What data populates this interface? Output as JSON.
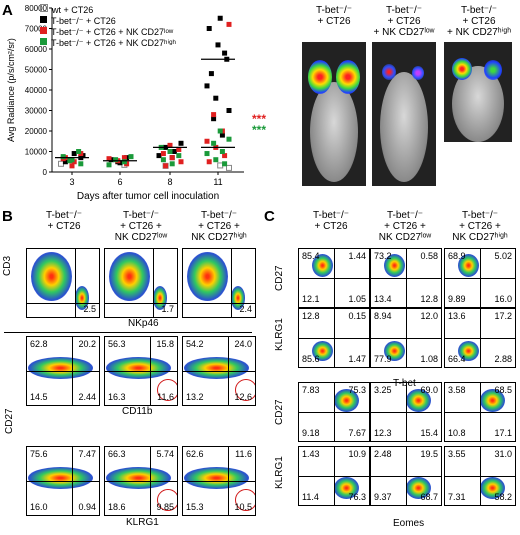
{
  "panelA": {
    "letter": "A",
    "legend": [
      "wt + CT26",
      "T-bet⁻/⁻ + CT26",
      "T-bet⁻/⁻ + CT26 + NK CD27ˡᵒʷ",
      "T-bet⁻/⁻ + CT26 + NK CD27ʰⁱᵍʰ"
    ],
    "colors": {
      "wt": "#888888",
      "tbet": "#000000",
      "low": "#e02020",
      "high": "#1a9a3a"
    },
    "sig_low": "***",
    "sig_high": "***",
    "images": [
      {
        "label1": "T-bet⁻/⁻",
        "label2": "+ CT26",
        "label3": ""
      },
      {
        "label1": "T-bet⁻/⁻",
        "label2": "+ CT26",
        "label3": "+ NK CD27ˡᵒʷ"
      },
      {
        "label1": "T-bet⁻/⁻",
        "label2": "+ CT26",
        "label3": "+ NK CD27ʰⁱᵍʰ"
      }
    ]
  },
  "chart_data": {
    "type": "scatter",
    "xlabel": "Days after tumor cell inoculation",
    "ylabel": "Avg Radiance (p/s/cm²/sr)",
    "categories": [
      "3",
      "6",
      "8",
      "11"
    ],
    "yticks": [
      "0",
      "10000",
      "20000",
      "30000",
      "40000",
      "50000",
      "60000",
      "70000",
      "80000"
    ],
    "ylim": [
      0,
      80000
    ],
    "means": [
      {
        "x": "3",
        "value": 7000
      },
      {
        "x": "6",
        "value": 5500
      },
      {
        "x": "8",
        "value": 12000
      },
      {
        "x": "11",
        "value": 55000
      },
      {
        "x": "11",
        "value": 12000
      }
    ],
    "series": [
      {
        "name": "wt + CT26",
        "points": [
          [
            3,
            4000
          ],
          [
            6,
            3500
          ],
          [
            8,
            3000
          ],
          [
            11,
            2000
          ],
          [
            11,
            3200
          ]
        ]
      },
      {
        "name": "T-bet⁻/⁻ + CT26",
        "points": [
          [
            3,
            6000
          ],
          [
            3,
            8000
          ],
          [
            3,
            9000
          ],
          [
            3,
            5000
          ],
          [
            3,
            7000
          ],
          [
            6,
            4500
          ],
          [
            6,
            6000
          ],
          [
            6,
            7000
          ],
          [
            6,
            5000
          ],
          [
            8,
            8000
          ],
          [
            8,
            10000
          ],
          [
            8,
            12000
          ],
          [
            8,
            14000
          ],
          [
            8,
            7000
          ],
          [
            11,
            48000
          ],
          [
            11,
            55000
          ],
          [
            11,
            62000
          ],
          [
            11,
            70000
          ],
          [
            11,
            58000
          ],
          [
            11,
            36000
          ],
          [
            11,
            42000
          ],
          [
            11,
            18000
          ],
          [
            11,
            26000
          ],
          [
            11,
            30000
          ],
          [
            11,
            75000
          ]
        ]
      },
      {
        "name": "T-bet⁻/⁻ + CT26 + NK CD27ˡᵒʷ",
        "points": [
          [
            3,
            5000
          ],
          [
            3,
            7000
          ],
          [
            3,
            9000
          ],
          [
            3,
            3000
          ],
          [
            3,
            6500
          ],
          [
            6,
            4000
          ],
          [
            6,
            5500
          ],
          [
            6,
            6500
          ],
          [
            6,
            7000
          ],
          [
            8,
            3000
          ],
          [
            8,
            5000
          ],
          [
            8,
            7000
          ],
          [
            8,
            9000
          ],
          [
            8,
            11000
          ],
          [
            8,
            13000
          ],
          [
            11,
            5000
          ],
          [
            11,
            8000
          ],
          [
            11,
            12000
          ],
          [
            11,
            15000
          ],
          [
            11,
            20000
          ],
          [
            11,
            28000
          ],
          [
            11,
            72000
          ]
        ]
      },
      {
        "name": "T-bet⁻/⁻ + CT26 + NK CD27ʰⁱᵍʰ",
        "points": [
          [
            3,
            4000
          ],
          [
            3,
            6000
          ],
          [
            3,
            7500
          ],
          [
            3,
            10000
          ],
          [
            3,
            5500
          ],
          [
            6,
            3500
          ],
          [
            6,
            5000
          ],
          [
            6,
            6000
          ],
          [
            6,
            7500
          ],
          [
            8,
            4000
          ],
          [
            8,
            6000
          ],
          [
            8,
            8000
          ],
          [
            8,
            10000
          ],
          [
            8,
            12000
          ],
          [
            11,
            4000
          ],
          [
            11,
            6000
          ],
          [
            11,
            9000
          ],
          [
            11,
            10000
          ],
          [
            11,
            14000
          ],
          [
            11,
            16000
          ],
          [
            11,
            20000
          ]
        ]
      }
    ]
  },
  "panelB": {
    "letter": "B",
    "headers": [
      {
        "l1": "T-bet⁻/⁻",
        "l2": "+ CT26",
        "l3": ""
      },
      {
        "l1": "T-bet⁻/⁻",
        "l2": "+ CT26 +",
        "l3": "NK CD27ˡᵒʷ"
      },
      {
        "l1": "T-bet⁻/⁻",
        "l2": "+ CT26 +",
        "l3": "NK CD27ʰⁱᵍʰ"
      }
    ],
    "row1": {
      "ylabel": "CD3",
      "xlabel": "NKp46",
      "values": [
        "2.5",
        "1.7",
        "2.4"
      ]
    },
    "ylabel_bottom": "CD27",
    "row2": {
      "xlabel": "CD11b",
      "plots": [
        [
          "62.8",
          "20.2",
          "14.5",
          "2.44"
        ],
        [
          "56.3",
          "15.8",
          "16.3",
          "11.6"
        ],
        [
          "54.2",
          "24.0",
          "13.2",
          "12.6"
        ]
      ]
    },
    "row3": {
      "xlabel": "KLRG1",
      "plots": [
        [
          "75.6",
          "7.47",
          "16.0",
          "0.94"
        ],
        [
          "66.3",
          "5.74",
          "18.6",
          "9.85"
        ],
        [
          "62.6",
          "11.6",
          "15.3",
          "10.5"
        ]
      ]
    }
  },
  "panelC": {
    "letter": "C",
    "headers": [
      {
        "l1": "T-bet⁻/⁻",
        "l2": "+ CT26",
        "l3": ""
      },
      {
        "l1": "T-bet⁻/⁻",
        "l2": "+ CT26 +",
        "l3": "NK CD27ˡᵒʷ"
      },
      {
        "l1": "T-bet⁻/⁻",
        "l2": "+ CT26 +",
        "l3": "NK CD27ʰⁱᵍʰ"
      }
    ],
    "xlabel_top": "T-bet",
    "xlabel_bottom": "Eomes",
    "rows": [
      {
        "ylabel": "CD27",
        "plots": [
          [
            "85.4",
            "1.44",
            "12.1",
            "1.05"
          ],
          [
            "73.2",
            "0.58",
            "13.4",
            "12.8"
          ],
          [
            "68.9",
            "5.02",
            "9.89",
            "16.0"
          ]
        ]
      },
      {
        "ylabel": "KLRG1",
        "plots": [
          [
            "12.8",
            "0.15",
            "85.6",
            "1.47"
          ],
          [
            "8.94",
            "12.0",
            "77.9",
            "1.08"
          ],
          [
            "13.6",
            "17.2",
            "66.4",
            "2.88"
          ]
        ]
      },
      {
        "ylabel": "CD27",
        "plots": [
          [
            "7.83",
            "75.3",
            "9.18",
            "7.67"
          ],
          [
            "3.25",
            "69.0",
            "12.3",
            "15.4"
          ],
          [
            "3.58",
            "68.5",
            "10.8",
            "17.1"
          ]
        ]
      },
      {
        "ylabel": "KLRG1",
        "plots": [
          [
            "1.43",
            "10.9",
            "11.4",
            "76.3"
          ],
          [
            "2.48",
            "19.5",
            "9.37",
            "68.7"
          ],
          [
            "3.55",
            "31.0",
            "7.31",
            "58.2"
          ]
        ]
      }
    ]
  }
}
